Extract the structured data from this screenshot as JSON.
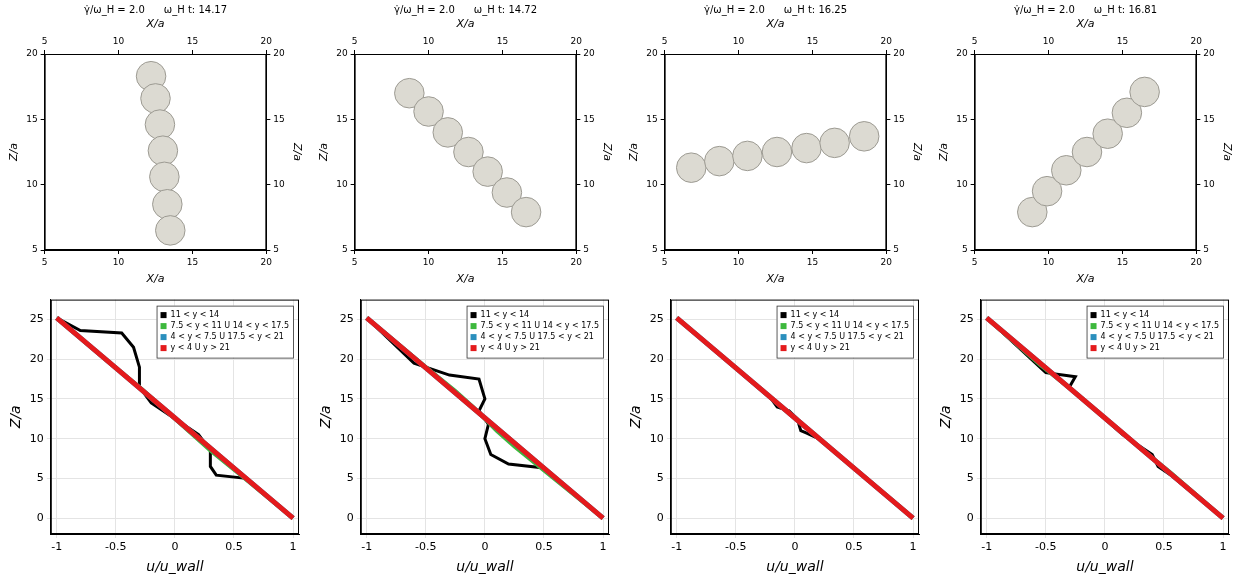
{
  "chart_data": [
    {
      "type": "bubble",
      "title": "γ̇/ω_H = 2.0",
      "subtitle": "ω_H t: 14.17",
      "x_label": "X/a",
      "y_label": "Z/a",
      "xlim": [
        5,
        20
      ],
      "xticks": [
        5,
        10,
        15,
        20
      ],
      "ylim": [
        5,
        20
      ],
      "yticks": [
        5,
        10,
        15,
        20
      ],
      "grid": false,
      "series": [
        {
          "color": "#dcdad2",
          "radius": 1,
          "x": [
            12.2,
            12.5,
            12.8,
            13.0,
            13.1,
            13.3,
            13.5
          ],
          "values": [
            18.3,
            16.6,
            14.6,
            12.6,
            10.6,
            8.5,
            6.5
          ]
        }
      ]
    },
    {
      "type": "bubble",
      "title": "γ̇/ω_H = 2.0",
      "subtitle": "ω_H t: 14.72",
      "x_label": "X/a",
      "y_label": "Z/a",
      "xlim": [
        5,
        20
      ],
      "xticks": [
        5,
        10,
        15,
        20
      ],
      "ylim": [
        5,
        20
      ],
      "yticks": [
        5,
        10,
        15,
        20
      ],
      "grid": false,
      "series": [
        {
          "color": "#dcdad2",
          "radius": 1,
          "x": [
            8.7,
            10.0,
            11.3,
            12.7,
            14.0,
            15.3,
            16.6
          ],
          "values": [
            17.0,
            15.6,
            14.0,
            12.5,
            11.0,
            9.4,
            7.9
          ]
        }
      ]
    },
    {
      "type": "bubble",
      "title": "γ̇/ω_H = 2.0",
      "subtitle": "ω_H t: 16.25",
      "x_label": "X/a",
      "y_label": "Z/a",
      "xlim": [
        5,
        20
      ],
      "xticks": [
        5,
        10,
        15,
        20
      ],
      "ylim": [
        5,
        20
      ],
      "yticks": [
        5,
        10,
        15,
        20
      ],
      "grid": false,
      "series": [
        {
          "color": "#dcdad2",
          "radius": 1,
          "x": [
            6.8,
            8.7,
            10.6,
            12.6,
            14.6,
            16.5,
            18.5
          ],
          "values": [
            11.3,
            11.8,
            12.2,
            12.5,
            12.8,
            13.2,
            13.7
          ]
        }
      ]
    },
    {
      "type": "bubble",
      "title": "γ̇/ω_H = 2.0",
      "subtitle": "ω_H t: 16.81",
      "x_label": "X/a",
      "y_label": "Z/a",
      "xlim": [
        5,
        20
      ],
      "xticks": [
        5,
        10,
        15,
        20
      ],
      "ylim": [
        5,
        20
      ],
      "yticks": [
        5,
        10,
        15,
        20
      ],
      "grid": false,
      "series": [
        {
          "color": "#dcdad2",
          "radius": 1,
          "x": [
            8.9,
            9.9,
            11.2,
            12.6,
            14.0,
            15.3,
            16.5
          ],
          "values": [
            7.9,
            9.5,
            11.1,
            12.5,
            13.9,
            15.5,
            17.1
          ]
        }
      ]
    },
    {
      "type": "line",
      "x_label": "u/u_wall",
      "y_label": "Z/a",
      "xlim": [
        -1.05,
        1.05
      ],
      "xticks": [
        -1,
        -0.5,
        0,
        0.5,
        1
      ],
      "ylim": [
        -2,
        27.5
      ],
      "yticks": [
        0,
        5,
        10,
        15,
        20,
        25
      ],
      "grid": true,
      "legend": "upper right",
      "series": [
        {
          "name": "11 < y < 14",
          "color": "#000000",
          "x": [
            1,
            0.6,
            0.35,
            0.3,
            0.3,
            0.2,
            0,
            -0.2,
            -0.3,
            -0.3,
            -0.35,
            -0.45,
            -0.8,
            -1
          ],
          "values": [
            0,
            5,
            5.4,
            6.5,
            8.5,
            10.5,
            12.5,
            14.5,
            16.5,
            19,
            21.5,
            23.3,
            23.6,
            25.2
          ]
        },
        {
          "name": "7.5 < y < 11 U 14 < y < 17.5",
          "color": "#3db83d",
          "x": [
            1,
            0.55,
            0.3,
            0,
            -0.3,
            -0.55,
            -1
          ],
          "values": [
            0,
            5.5,
            8.5,
            12.5,
            16.5,
            19.5,
            25.2
          ]
        },
        {
          "name": "4 < y < 7.5 U 17.5 < y < 21",
          "color": "#2a8fbd",
          "x": [
            1,
            0.5,
            0,
            -0.5,
            -1
          ],
          "values": [
            0,
            6.3,
            12.6,
            18.9,
            25.2
          ]
        },
        {
          "name": "y < 4 U y > 21",
          "color": "#e41a1c",
          "x": [
            1,
            0.5,
            0,
            -0.5,
            -1
          ],
          "values": [
            0,
            6.3,
            12.6,
            18.9,
            25.2
          ]
        }
      ]
    },
    {
      "type": "line",
      "x_label": "u/u_wall",
      "y_label": "Z/a",
      "xlim": [
        -1.05,
        1.05
      ],
      "xticks": [
        -1,
        -0.5,
        0,
        0.5,
        1
      ],
      "ylim": [
        -2,
        27.5
      ],
      "yticks": [
        0,
        5,
        10,
        15,
        20,
        25
      ],
      "grid": true,
      "legend": "upper right",
      "series": [
        {
          "name": "11 < y < 14",
          "color": "#000000",
          "x": [
            1,
            0.5,
            0.2,
            0.05,
            0,
            0.03,
            0,
            -0.05,
            0,
            -0.05,
            -0.3,
            -0.6,
            -1
          ],
          "values": [
            0,
            6.3,
            6.8,
            8,
            10,
            11.8,
            12.5,
            13.5,
            15,
            17.5,
            18,
            19.5,
            25.2
          ]
        },
        {
          "name": "7.5 < y < 11 U 14 < y < 17.5",
          "color": "#3db83d",
          "x": [
            1,
            0.5,
            0.25,
            0.1,
            0,
            -0.1,
            -0.25,
            -0.5,
            -1
          ],
          "values": [
            0,
            6,
            9,
            11,
            12.5,
            14,
            16,
            19,
            25.2
          ]
        },
        {
          "name": "4 < y < 7.5 U 17.5 < y < 21",
          "color": "#2a8fbd",
          "x": [
            1,
            0.5,
            0,
            -0.5,
            -1
          ],
          "values": [
            0,
            6.3,
            12.6,
            18.9,
            25.2
          ]
        },
        {
          "name": "y < 4 U y > 21",
          "color": "#e41a1c",
          "x": [
            1,
            0.5,
            0,
            -0.5,
            -1
          ],
          "values": [
            0,
            6.3,
            12.6,
            18.9,
            25.2
          ]
        }
      ]
    },
    {
      "type": "line",
      "x_label": "u/u_wall",
      "y_label": "Z/a",
      "xlim": [
        -1.05,
        1.05
      ],
      "xticks": [
        -1,
        -0.5,
        0,
        0.5,
        1
      ],
      "ylim": [
        -2,
        27.5
      ],
      "yticks": [
        0,
        5,
        10,
        15,
        20,
        25
      ],
      "grid": true,
      "legend": "upper right",
      "series": [
        {
          "name": "11 < y < 14",
          "color": "#000000",
          "x": [
            1,
            0.6,
            0.2,
            0.1,
            0.05,
            0.02,
            -0.05,
            -0.15,
            -0.2,
            -1
          ],
          "values": [
            0,
            5,
            10,
            10.7,
            11,
            12.5,
            13.5,
            14,
            15,
            25.2
          ]
        },
        {
          "name": "7.5 < y < 11 U 14 < y < 17.5",
          "color": "#3db83d",
          "x": [
            1,
            0.5,
            0,
            -0.5,
            -1
          ],
          "values": [
            0,
            6.3,
            12.6,
            18.9,
            25.2
          ]
        },
        {
          "name": "4 < y < 7.5 U 17.5 < y < 21",
          "color": "#2a8fbd",
          "x": [
            1,
            0.5,
            0,
            -0.5,
            -1
          ],
          "values": [
            0,
            6.3,
            12.6,
            18.9,
            25.2
          ]
        },
        {
          "name": "y < 4 U y > 21",
          "color": "#e41a1c",
          "x": [
            1,
            0.5,
            0,
            -0.5,
            -1
          ],
          "values": [
            0,
            6.3,
            12.6,
            18.9,
            25.2
          ]
        }
      ]
    },
    {
      "type": "line",
      "x_label": "u/u_wall",
      "y_label": "Z/a",
      "xlim": [
        -1.05,
        1.05
      ],
      "xticks": [
        -1,
        -0.5,
        0,
        0.5,
        1
      ],
      "ylim": [
        -2,
        27.5
      ],
      "yticks": [
        0,
        5,
        10,
        15,
        20,
        25
      ],
      "grid": true,
      "legend": "upper right",
      "series": [
        {
          "name": "11 < y < 14",
          "color": "#000000",
          "x": [
            1,
            0.55,
            0.45,
            0.4,
            0.15,
            0,
            -0.15,
            -0.3,
            -0.25,
            -0.5,
            -1
          ],
          "values": [
            0,
            5.5,
            6.5,
            8,
            10.5,
            12.5,
            14.5,
            16.5,
            17.8,
            18.3,
            25.2
          ]
        },
        {
          "name": "7.5 < y < 11 U 14 < y < 17.5",
          "color": "#3db83d",
          "x": [
            1,
            0.55,
            0.3,
            0,
            -0.3,
            -0.55,
            -1
          ],
          "values": [
            0,
            5.8,
            8.8,
            12.6,
            16.4,
            19.3,
            25.2
          ]
        },
        {
          "name": "4 < y < 7.5 U 17.5 < y < 21",
          "color": "#2a8fbd",
          "x": [
            1,
            0.5,
            0,
            -0.5,
            -1
          ],
          "values": [
            0,
            6.3,
            12.6,
            18.9,
            25.2
          ]
        },
        {
          "name": "y < 4 U y > 21",
          "color": "#e41a1c",
          "x": [
            1,
            0.5,
            0,
            -0.5,
            -1
          ],
          "values": [
            0,
            6.3,
            12.6,
            18.9,
            25.2
          ]
        }
      ]
    }
  ]
}
